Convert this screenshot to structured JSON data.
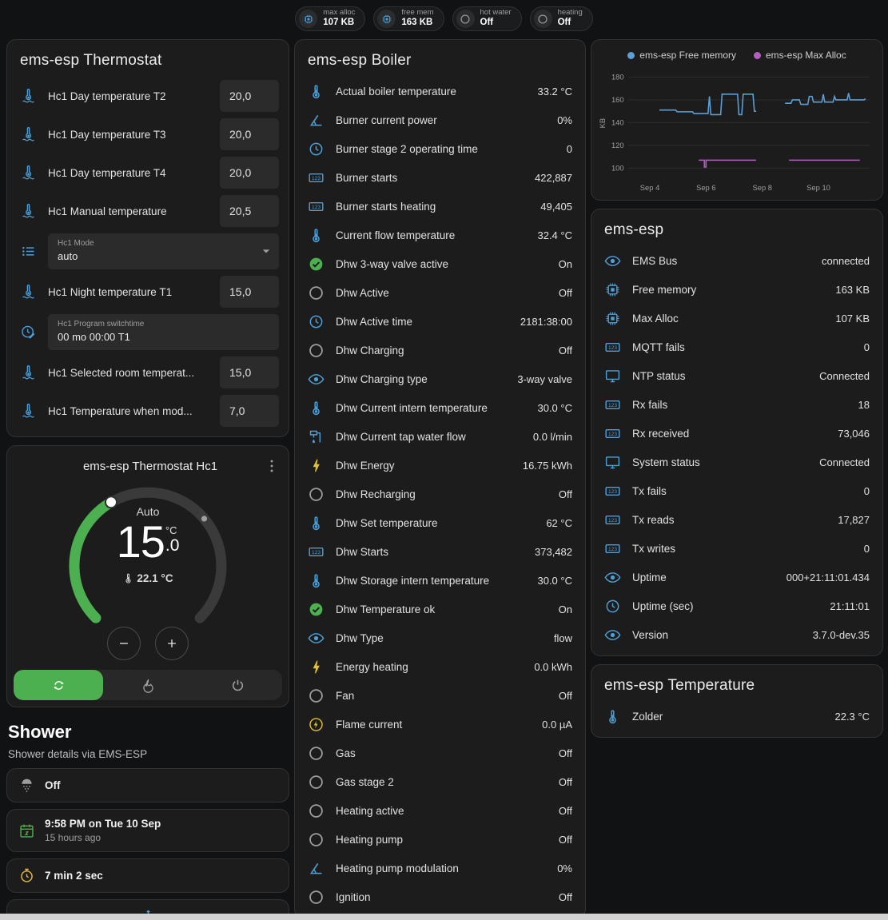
{
  "colors": {
    "accent_blue": "#4d9fd6",
    "green": "#4caf50",
    "yellow": "#e2c231",
    "grey": "#9e9e9e",
    "page_bg": "#111214",
    "card_bg": "#1c1c1c"
  },
  "icon_colors": {
    "chip": "#4d9fd6",
    "circle": "#9e9e9e",
    "thermo-water": "#4d9fd6",
    "list": "#4d9fd6",
    "clock-edit": "#4d9fd6",
    "thermo": "#4d9fd6",
    "angle": "#4d9fd6",
    "clock": "#4d9fd6",
    "counter": "#4d9fd6",
    "check-circle": "#4caf50",
    "eye": "#4d9fd6",
    "pump": "#4d9fd6",
    "bolt": "#e2c231",
    "bolt-circle": "#e2c231",
    "monitor": "#4d9fd6",
    "shower": "#9e9e9e",
    "calendar": "#4caf50",
    "timer": "#e8b63c",
    "snowflake": "#53a9e0",
    "flame": "#9e9e9e",
    "power": "#9e9e9e",
    "autorenew": "#ffffff",
    "dots-vertical": "#9e9e9e",
    "minus": "#e1e1e1",
    "plus": "#e1e1e1",
    "menu-down": "#9e9e9e"
  },
  "ui_icons": {
    "caret": "menu-down",
    "kebab": "dots-vertical",
    "minus": "minus",
    "plus": "plus",
    "thermo_small": "thermo"
  },
  "header_chips": [
    {
      "icon": "chip",
      "label": "max alloc",
      "value": "107 KB"
    },
    {
      "icon": "chip",
      "label": "free mem",
      "value": "163 KB"
    },
    {
      "icon": "circle",
      "label": "hot water",
      "value": "Off"
    },
    {
      "icon": "circle",
      "label": "heating",
      "value": "Off"
    }
  ],
  "thermostat_card": {
    "title": "ems-esp Thermostat",
    "temp_rows_1": [
      {
        "icon": "thermo-water",
        "label": "Hc1 Day temperature T2",
        "value": "20,0"
      },
      {
        "icon": "thermo-water",
        "label": "Hc1 Day temperature T3",
        "value": "20,0"
      },
      {
        "icon": "thermo-water",
        "label": "Hc1 Day temperature T4",
        "value": "20,0"
      },
      {
        "icon": "thermo-water",
        "label": "Hc1 Manual temperature",
        "value": "20,5"
      }
    ],
    "mode_row": {
      "icon": "list",
      "label": "Hc1 Mode",
      "value": "auto"
    },
    "temp_rows_2": [
      {
        "icon": "thermo-water",
        "label": "Hc1 Night temperature T1",
        "value": "15,0"
      }
    ],
    "program_row": {
      "icon": "clock-edit",
      "label": "Hc1 Program switchtime",
      "value": "00 mo 00:00 T1"
    },
    "temp_rows_3": [
      {
        "icon": "thermo-water",
        "label": "Hc1 Selected room temperat...",
        "value": "15,0"
      },
      {
        "icon": "thermo-water",
        "label": "Hc1 Temperature when mod...",
        "value": "7,0"
      }
    ]
  },
  "dial_card": {
    "title": "ems-esp Thermostat Hc1",
    "mode": "Auto",
    "target_int": "15",
    "target_dec": ".0",
    "unit": "°C",
    "current": "22.1 °C",
    "modes": [
      {
        "icon": "autorenew",
        "active": true
      },
      {
        "icon": "flame",
        "active": false
      },
      {
        "icon": "power",
        "active": false
      }
    ]
  },
  "shower": {
    "title": "Shower",
    "subtitle": "Shower details via EMS-ESP",
    "state_card": {
      "icon": "shower",
      "value": "Off"
    },
    "time_card": {
      "icon": "calendar",
      "value": "9:58 PM on Tue 10 Sep",
      "sub": "15 hours ago"
    },
    "duration_card": {
      "icon": "timer",
      "value": "7 min 2 sec"
    },
    "alert_card": {
      "icon": "snowflake"
    }
  },
  "boiler_card": {
    "title": "ems-esp Boiler",
    "rows": [
      {
        "icon": "thermo",
        "label": "Actual boiler temperature",
        "value": "33.2 °C"
      },
      {
        "icon": "angle",
        "label": "Burner current power",
        "value": "0%"
      },
      {
        "icon": "clock",
        "label": "Burner stage 2 operating time",
        "value": "0"
      },
      {
        "icon": "counter",
        "label": "Burner starts",
        "value": "422,887"
      },
      {
        "icon": "counter",
        "label": "Burner starts heating",
        "value": "49,405"
      },
      {
        "icon": "thermo",
        "label": "Current flow temperature",
        "value": "32.4 °C"
      },
      {
        "icon": "check-circle",
        "label": "Dhw 3-way valve active",
        "value": "On"
      },
      {
        "icon": "circle",
        "label": "Dhw Active",
        "value": "Off"
      },
      {
        "icon": "clock",
        "label": "Dhw Active time",
        "value": "2181:38:00"
      },
      {
        "icon": "circle",
        "label": "Dhw Charging",
        "value": "Off"
      },
      {
        "icon": "eye",
        "label": "Dhw Charging type",
        "value": "3-way valve"
      },
      {
        "icon": "thermo",
        "label": "Dhw Current intern temperature",
        "value": "30.0 °C"
      },
      {
        "icon": "pump",
        "label": "Dhw Current tap water flow",
        "value": "0.0 l/min"
      },
      {
        "icon": "bolt",
        "label": "Dhw Energy",
        "value": "16.75 kWh"
      },
      {
        "icon": "circle",
        "label": "Dhw Recharging",
        "value": "Off"
      },
      {
        "icon": "thermo",
        "label": "Dhw Set temperature",
        "value": "62 °C"
      },
      {
        "icon": "counter",
        "label": "Dhw Starts",
        "value": "373,482"
      },
      {
        "icon": "thermo",
        "label": "Dhw Storage intern temperature",
        "value": "30.0 °C"
      },
      {
        "icon": "check-circle",
        "label": "Dhw Temperature ok",
        "value": "On"
      },
      {
        "icon": "eye",
        "label": "Dhw Type",
        "value": "flow"
      },
      {
        "icon": "bolt",
        "label": "Energy heating",
        "value": "0.0 kWh"
      },
      {
        "icon": "circle",
        "label": "Fan",
        "value": "Off"
      },
      {
        "icon": "bolt-circle",
        "label": "Flame current",
        "value": "0.0 µA"
      },
      {
        "icon": "circle",
        "label": "Gas",
        "value": "Off"
      },
      {
        "icon": "circle",
        "label": "Gas stage 2",
        "value": "Off"
      },
      {
        "icon": "circle",
        "label": "Heating active",
        "value": "Off"
      },
      {
        "icon": "circle",
        "label": "Heating pump",
        "value": "Off"
      },
      {
        "icon": "angle",
        "label": "Heating pump modulation",
        "value": "0%"
      },
      {
        "icon": "circle",
        "label": "Ignition",
        "value": "Off"
      }
    ]
  },
  "ems_card": {
    "title": "ems-esp",
    "rows": [
      {
        "icon": "eye",
        "label": "EMS Bus",
        "value": "connected"
      },
      {
        "icon": "chip",
        "label": "Free memory",
        "value": "163 KB"
      },
      {
        "icon": "chip",
        "label": "Max Alloc",
        "value": "107 KB"
      },
      {
        "icon": "counter",
        "label": "MQTT fails",
        "value": "0"
      },
      {
        "icon": "monitor",
        "label": "NTP status",
        "value": "Connected"
      },
      {
        "icon": "counter",
        "label": "Rx fails",
        "value": "18"
      },
      {
        "icon": "counter",
        "label": "Rx received",
        "value": "73,046"
      },
      {
        "icon": "monitor",
        "label": "System status",
        "value": "Connected"
      },
      {
        "icon": "counter",
        "label": "Tx fails",
        "value": "0"
      },
      {
        "icon": "counter",
        "label": "Tx reads",
        "value": "17,827"
      },
      {
        "icon": "counter",
        "label": "Tx writes",
        "value": "0"
      },
      {
        "icon": "eye",
        "label": "Uptime",
        "value": "000+21:11:01.434"
      },
      {
        "icon": "clock",
        "label": "Uptime (sec)",
        "value": "21:11:01"
      },
      {
        "icon": "eye",
        "label": "Version",
        "value": "3.7.0-dev.35"
      }
    ]
  },
  "temperature_card": {
    "title": "ems-esp Temperature",
    "rows": [
      {
        "icon": "thermo",
        "label": "Zolder",
        "value": "22.3 °C"
      }
    ]
  },
  "chart_data": {
    "type": "line",
    "title": "",
    "xlabel": "",
    "ylabel": "KB",
    "unit": "KB",
    "grid": true,
    "legend_position": "top",
    "ylim": [
      93,
      186
    ],
    "xlim": [
      0,
      8.6
    ],
    "yticks": [
      180,
      160,
      140,
      120,
      100
    ],
    "xticks": [
      {
        "x": 0.78,
        "label": "Sep 4"
      },
      {
        "x": 2.78,
        "label": "Sep 6"
      },
      {
        "x": 4.78,
        "label": "Sep 8"
      },
      {
        "x": 6.78,
        "label": "Sep 10"
      }
    ],
    "series": [
      {
        "name": "ems-esp Free memory",
        "color": "#5c9fd6",
        "segments": [
          [
            [
              1.12,
              151
            ],
            [
              1.7,
              151
            ],
            [
              1.75,
              149.5
            ],
            [
              2.3,
              149.5
            ],
            [
              2.35,
              148
            ],
            [
              2.85,
              148
            ],
            [
              2.9,
              163
            ],
            [
              2.95,
              147
            ],
            [
              3.3,
              147
            ],
            [
              3.35,
              165
            ],
            [
              3.9,
              165
            ],
            [
              3.95,
              147
            ],
            [
              4.05,
              147
            ],
            [
              4.1,
              165
            ],
            [
              4.45,
              165
            ],
            [
              4.5,
              150
            ],
            [
              4.56,
              150
            ]
          ],
          [
            [
              5.59,
              157
            ],
            [
              5.8,
              157
            ],
            [
              5.85,
              160
            ],
            [
              6.1,
              160
            ],
            [
              6.15,
              156
            ],
            [
              6.4,
              156
            ],
            [
              6.45,
              163
            ],
            [
              6.55,
              163
            ],
            [
              6.6,
              158
            ],
            [
              6.9,
              158
            ],
            [
              6.95,
              165
            ],
            [
              7.0,
              158
            ],
            [
              7.3,
              158
            ],
            [
              7.35,
              163
            ],
            [
              7.4,
              160
            ],
            [
              7.8,
              160
            ],
            [
              7.85,
              166
            ],
            [
              7.9,
              160
            ],
            [
              8.4,
              160
            ],
            [
              8.45,
              161
            ]
          ]
        ]
      },
      {
        "name": "ems-esp Max Alloc",
        "color": "#b35fc0",
        "segments": [
          [
            [
              2.52,
              107
            ],
            [
              2.72,
              107
            ],
            [
              2.72,
              101
            ],
            [
              2.78,
              101
            ],
            [
              2.78,
              107
            ],
            [
              4.56,
              107
            ]
          ],
          [
            [
              5.73,
              107
            ],
            [
              8.25,
              107
            ]
          ]
        ]
      }
    ]
  }
}
